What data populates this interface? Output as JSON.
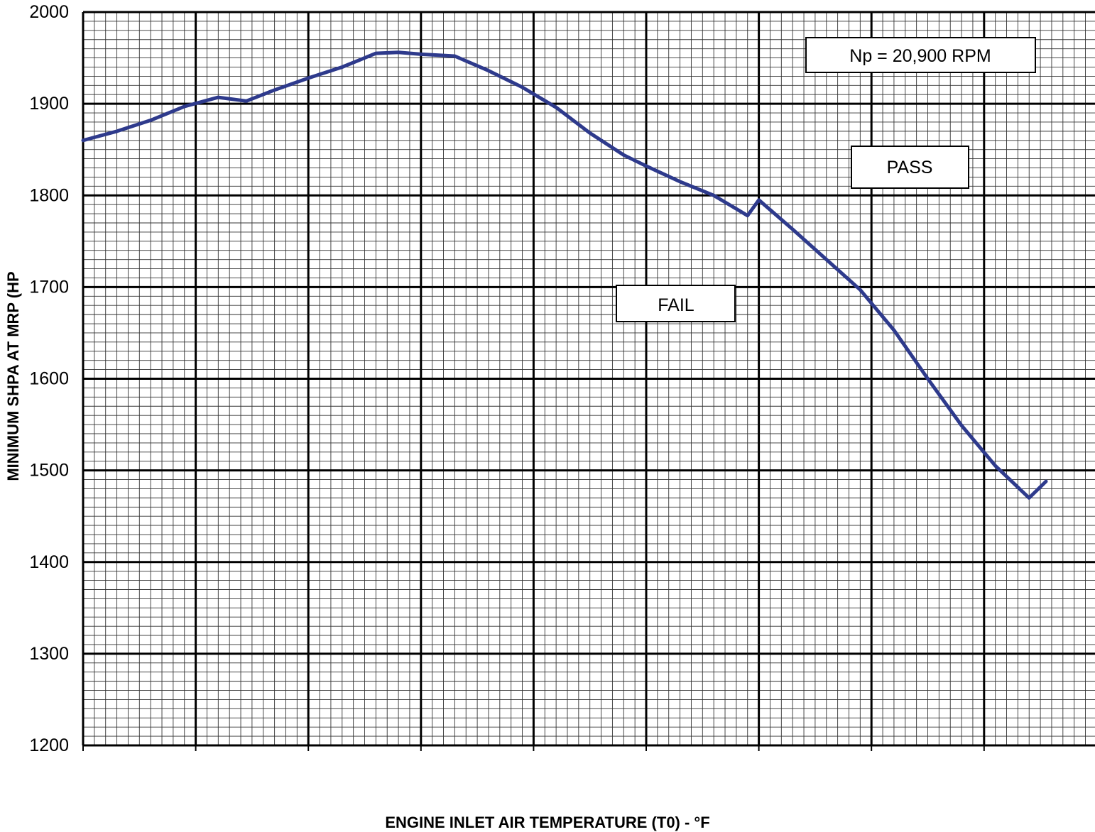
{
  "chart_data": {
    "type": "line",
    "title": "",
    "xlabel": "ENGINE INLET AIR TEMPERATURE (T0) - °F",
    "ylabel": "MINIMUM SHPA AT MRP (HP",
    "ylim": [
      1200,
      2000
    ],
    "yticks": [
      "2000",
      "1900",
      "1800",
      "1700",
      "1600",
      "1500",
      "1400",
      "1300",
      "1200"
    ],
    "xlim": [
      0,
      9
    ],
    "xticks_labeled": false,
    "grid": true,
    "series": [
      {
        "color": "#2e3a8c",
        "x": [
          0,
          0.3,
          0.6,
          0.9,
          1.2,
          1.45,
          1.7,
          2.0,
          2.3,
          2.6,
          2.8,
          3.0,
          3.3,
          3.6,
          3.9,
          4.2,
          4.5,
          4.8,
          5.0,
          5.3,
          5.6,
          5.9,
          6.0,
          6.3,
          6.6,
          6.9,
          7.2,
          7.5,
          7.8,
          8.1,
          8.4,
          8.55
        ],
        "values": [
          1860,
          1870,
          1882,
          1897,
          1907,
          1903,
          1915,
          1928,
          1940,
          1955,
          1956,
          1954,
          1952,
          1936,
          1918,
          1896,
          1868,
          1844,
          1832,
          1815,
          1800,
          1778,
          1795,
          1763,
          1730,
          1697,
          1653,
          1600,
          1549,
          1505,
          1470,
          1488
        ]
      }
    ],
    "annotations": [
      "Np = 20,900 RPM",
      "PASS",
      "FAIL"
    ]
  }
}
